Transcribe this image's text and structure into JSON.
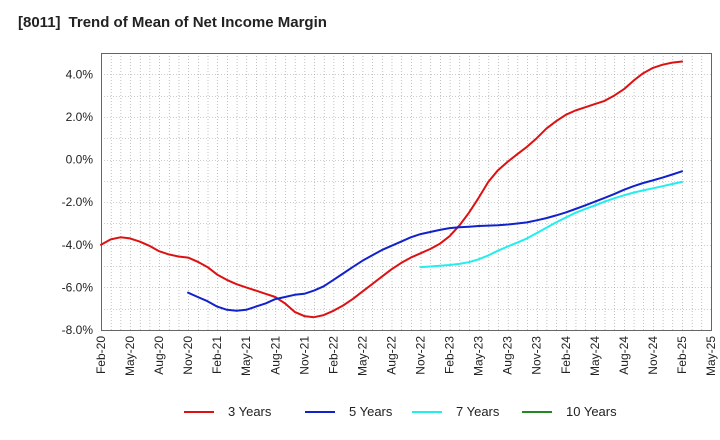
{
  "title_code": "[8011]",
  "title_text": "Trend of Mean of Net Income Margin",
  "chart_data": {
    "type": "line",
    "title": "[8011]  Trend of Mean of Net Income Margin",
    "ylim": [
      -8.0,
      5.0
    ],
    "yticks": [
      4.0,
      2.0,
      0.0,
      -2.0,
      -4.0,
      -6.0,
      -8.0
    ],
    "ytick_labels": [
      "4.0%",
      "2.0%",
      "0.0%",
      "-2.0%",
      "-4.0%",
      "-6.0%",
      "-8.0%"
    ],
    "xticks": [
      "Feb-20",
      "May-20",
      "Aug-20",
      "Nov-20",
      "Feb-21",
      "May-21",
      "Aug-21",
      "Nov-21",
      "Feb-22",
      "May-22",
      "Aug-22",
      "Nov-22",
      "Feb-23",
      "May-23",
      "Aug-23",
      "Nov-23",
      "Feb-24",
      "May-24",
      "Aug-24",
      "Nov-24",
      "Feb-25",
      "May-25"
    ],
    "grid": true,
    "legend_position": "bottom",
    "series": [
      {
        "name": "3 Years",
        "color": "#dd1111",
        "x": [
          "2020-02",
          "2020-03",
          "2020-04",
          "2020-05",
          "2020-06",
          "2020-07",
          "2020-08",
          "2020-09",
          "2020-10",
          "2020-11",
          "2020-12",
          "2021-01",
          "2021-02",
          "2021-03",
          "2021-04",
          "2021-05",
          "2021-06",
          "2021-07",
          "2021-08",
          "2021-09",
          "2021-10",
          "2021-11",
          "2021-12",
          "2022-01",
          "2022-02",
          "2022-03",
          "2022-04",
          "2022-05",
          "2022-06",
          "2022-07",
          "2022-08",
          "2022-09",
          "2022-10",
          "2022-11",
          "2022-12",
          "2023-01",
          "2023-02",
          "2023-03",
          "2023-04",
          "2023-05",
          "2023-06",
          "2023-07",
          "2023-08",
          "2023-09",
          "2023-10",
          "2023-11",
          "2023-12",
          "2024-01",
          "2024-02",
          "2024-03",
          "2024-04",
          "2024-05",
          "2024-06",
          "2024-07",
          "2024-08",
          "2024-09",
          "2024-10",
          "2024-11",
          "2024-12",
          "2025-01",
          "2025-02"
        ],
        "values": [
          -4.0,
          -3.75,
          -3.65,
          -3.7,
          -3.85,
          -4.05,
          -4.3,
          -4.45,
          -4.55,
          -4.6,
          -4.8,
          -5.05,
          -5.4,
          -5.65,
          -5.85,
          -6.0,
          -6.15,
          -6.3,
          -6.45,
          -6.75,
          -7.15,
          -7.35,
          -7.4,
          -7.3,
          -7.1,
          -6.85,
          -6.55,
          -6.2,
          -5.85,
          -5.5,
          -5.15,
          -4.85,
          -4.6,
          -4.4,
          -4.2,
          -3.95,
          -3.6,
          -3.1,
          -2.5,
          -1.8,
          -1.05,
          -0.5,
          -0.1,
          0.25,
          0.6,
          1.0,
          1.45,
          1.8,
          2.1,
          2.3,
          2.45,
          2.6,
          2.75,
          3.0,
          3.3,
          3.7,
          4.05,
          4.3,
          4.45,
          4.55,
          4.6
        ]
      },
      {
        "name": "5 Years",
        "color": "#1122cc",
        "x": [
          "2020-11",
          "2020-12",
          "2021-01",
          "2021-02",
          "2021-03",
          "2021-04",
          "2021-05",
          "2021-06",
          "2021-07",
          "2021-08",
          "2021-09",
          "2021-10",
          "2021-11",
          "2021-12",
          "2022-01",
          "2022-02",
          "2022-03",
          "2022-04",
          "2022-05",
          "2022-06",
          "2022-07",
          "2022-08",
          "2022-09",
          "2022-10",
          "2022-11",
          "2022-12",
          "2023-01",
          "2023-02",
          "2023-03",
          "2023-04",
          "2023-05",
          "2023-06",
          "2023-07",
          "2023-08",
          "2023-09",
          "2023-10",
          "2023-11",
          "2023-12",
          "2024-01",
          "2024-02",
          "2024-03",
          "2024-04",
          "2024-05",
          "2024-06",
          "2024-07",
          "2024-08",
          "2024-09",
          "2024-10",
          "2024-11",
          "2024-12",
          "2025-01",
          "2025-02"
        ],
        "values": [
          -6.25,
          -6.45,
          -6.65,
          -6.9,
          -7.05,
          -7.1,
          -7.05,
          -6.9,
          -6.75,
          -6.55,
          -6.45,
          -6.35,
          -6.3,
          -6.15,
          -5.95,
          -5.65,
          -5.35,
          -5.05,
          -4.75,
          -4.5,
          -4.25,
          -4.05,
          -3.85,
          -3.65,
          -3.5,
          -3.4,
          -3.3,
          -3.22,
          -3.18,
          -3.15,
          -3.12,
          -3.1,
          -3.08,
          -3.05,
          -3.0,
          -2.95,
          -2.85,
          -2.75,
          -2.62,
          -2.48,
          -2.32,
          -2.15,
          -1.98,
          -1.8,
          -1.62,
          -1.42,
          -1.25,
          -1.1,
          -0.98,
          -0.85,
          -0.7,
          -0.55
        ]
      },
      {
        "name": "7 Years",
        "color": "#22eeee",
        "x": [
          "2022-11",
          "2022-12",
          "2023-01",
          "2023-02",
          "2023-03",
          "2023-04",
          "2023-05",
          "2023-06",
          "2023-07",
          "2023-08",
          "2023-09",
          "2023-10",
          "2023-11",
          "2023-12",
          "2024-01",
          "2024-02",
          "2024-03",
          "2024-04",
          "2024-05",
          "2024-06",
          "2024-07",
          "2024-08",
          "2024-09",
          "2024-10",
          "2024-11",
          "2024-12",
          "2025-01",
          "2025-02"
        ],
        "values": [
          -5.05,
          -5.02,
          -4.98,
          -4.95,
          -4.9,
          -4.82,
          -4.68,
          -4.5,
          -4.28,
          -4.08,
          -3.9,
          -3.7,
          -3.45,
          -3.2,
          -2.95,
          -2.72,
          -2.5,
          -2.32,
          -2.15,
          -1.98,
          -1.82,
          -1.68,
          -1.55,
          -1.45,
          -1.35,
          -1.25,
          -1.15,
          -1.05
        ]
      },
      {
        "name": "10 Years",
        "color": "#228822",
        "x": [],
        "values": []
      }
    ]
  }
}
